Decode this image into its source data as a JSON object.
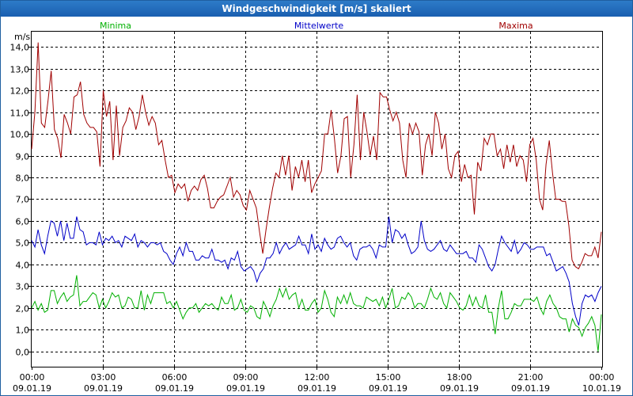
{
  "chart_data": {
    "type": "line",
    "title": "Windgeschwindigkeit [m/s] skaliert",
    "ylabel": "m/s",
    "xlabel": "",
    "ylim": [
      -0.7,
      14.7
    ],
    "yticks": [
      0,
      1,
      2,
      3,
      4,
      5,
      6,
      7,
      8,
      9,
      10,
      11,
      12,
      13,
      14
    ],
    "ytick_labels": [
      "0,0",
      "1,0",
      "2,0",
      "3,0",
      "4,0",
      "5,0",
      "6,0",
      "7,0",
      "8,0",
      "9,0",
      "10,0",
      "11,0",
      "12,0",
      "13,0",
      "14,0"
    ],
    "xlim": [
      0,
      24
    ],
    "xticks": [
      0,
      3,
      6,
      9,
      12,
      15,
      18,
      21,
      24
    ],
    "xtick_time": [
      "00:00",
      "03:00",
      "06:00",
      "09:00",
      "12:00",
      "15:00",
      "18:00",
      "21:00",
      "00:00"
    ],
    "xtick_date": [
      "09.01.19",
      "09.01.19",
      "09.01.19",
      "09.01.19",
      "09.01.19",
      "09.01.19",
      "09.01.19",
      "09.01.19",
      "10.01.19"
    ],
    "grid": true,
    "series": [
      {
        "name": "Minima",
        "color": "#00b000",
        "values": [
          2.0,
          2.3,
          1.9,
          2.2,
          1.8,
          1.9,
          2.8,
          2.8,
          2.2,
          2.5,
          2.7,
          2.3,
          2.5,
          2.6,
          3.5,
          2.1,
          2.3,
          2.3,
          2.5,
          2.7,
          2.6,
          2.0,
          2.4,
          2.0,
          2.3,
          2.7,
          2.5,
          2.6,
          2.0,
          2.1,
          2.5,
          2.4,
          2.0,
          2.0,
          2.8,
          1.9,
          2.6,
          2.2,
          2.7,
          2.7,
          2.7,
          2.7,
          2.2,
          2.3,
          2.0,
          2.3,
          1.9,
          1.5,
          1.8,
          2.0,
          2.0,
          2.2,
          1.8,
          2.0,
          2.2,
          2.1,
          2.2,
          2.0,
          1.9,
          2.5,
          2.2,
          2.2,
          2.6,
          1.9,
          2.0,
          2.4,
          1.9,
          1.8,
          2.1,
          2.0,
          1.6,
          1.5,
          2.3,
          2.0,
          1.6,
          2.1,
          2.4,
          2.9,
          2.5,
          2.9,
          2.4,
          2.6,
          2.7,
          2.0,
          2.4,
          1.9,
          1.9,
          2.2,
          2.4,
          1.8,
          2.0,
          2.8,
          2.4,
          1.8,
          1.6,
          2.5,
          2.2,
          2.6,
          2.2,
          2.7,
          2.2,
          2.1,
          2.1,
          2.0,
          2.5,
          2.4,
          2.3,
          2.4,
          2.1,
          2.5,
          2.0,
          2.4,
          2.9,
          2.0,
          2.1,
          2.5,
          2.4,
          2.7,
          2.5,
          2.0,
          2.2,
          2.2,
          2.0,
          2.4,
          2.9,
          2.5,
          2.4,
          2.7,
          2.2,
          2.0,
          2.7,
          2.5,
          2.3,
          2.0,
          1.9,
          2.1,
          2.6,
          2.1,
          2.5,
          2.1,
          2.0,
          2.6,
          1.8,
          1.8,
          0.8,
          2.0,
          2.8,
          1.5,
          1.5,
          1.8,
          2.2,
          2.1,
          2.1,
          2.4,
          2.4,
          2.4,
          2.3,
          2.5,
          2.0,
          1.7,
          2.3,
          2.6,
          2.2,
          2.0,
          1.6,
          1.5,
          1.5,
          0.9,
          1.5,
          1.2,
          1.1,
          0.7,
          1.1,
          1.3,
          1.6,
          1.2,
          0.0,
          1.7
        ]
      },
      {
        "name": "Mittelwerte",
        "color": "#0000c8",
        "values": [
          5.1,
          4.8,
          5.6,
          4.9,
          4.5,
          5.3,
          6.0,
          5.9,
          5.3,
          6.0,
          5.1,
          5.9,
          5.2,
          5.2,
          6.2,
          5.6,
          5.5,
          4.9,
          5.0,
          5.0,
          4.9,
          5.5,
          4.9,
          5.2,
          5.1,
          5.3,
          5.0,
          5.1,
          4.8,
          5.3,
          5.2,
          5.1,
          5.4,
          4.8,
          5.1,
          5.0,
          4.8,
          5.0,
          5.0,
          4.9,
          5.0,
          4.6,
          4.5,
          4.2,
          4.0,
          4.5,
          4.8,
          4.4,
          5.0,
          4.6,
          4.6,
          4.2,
          4.2,
          4.4,
          4.3,
          4.3,
          4.7,
          4.2,
          4.2,
          4.1,
          4.2,
          3.8,
          4.3,
          4.2,
          4.6,
          3.9,
          3.7,
          3.8,
          3.9,
          3.7,
          3.2,
          3.6,
          3.8,
          4.3,
          4.3,
          4.5,
          5.0,
          4.5,
          4.8,
          5.0,
          4.7,
          4.8,
          4.9,
          5.3,
          4.9,
          4.9,
          4.5,
          5.4,
          4.7,
          4.9,
          4.6,
          5.2,
          4.9,
          4.7,
          4.8,
          5.2,
          5.3,
          5.0,
          4.8,
          5.0,
          4.4,
          4.2,
          4.7,
          4.8,
          4.8,
          4.9,
          4.7,
          4.3,
          4.9,
          4.8,
          4.8,
          6.2,
          5.0,
          5.6,
          5.5,
          5.2,
          5.4,
          4.9,
          4.5,
          4.6,
          4.8,
          6.0,
          5.1,
          4.7,
          4.6,
          4.7,
          4.9,
          5.1,
          4.7,
          4.6,
          4.9,
          4.7,
          4.5,
          4.5,
          4.5,
          4.6,
          4.3,
          4.3,
          4.1,
          4.9,
          4.7,
          4.3,
          3.9,
          3.7,
          4.0,
          4.7,
          5.3,
          5.0,
          4.8,
          4.6,
          5.1,
          4.5,
          4.7,
          5.0,
          4.9,
          4.7,
          4.7,
          4.8,
          4.8,
          4.8,
          4.4,
          4.5,
          4.1,
          3.7,
          3.8,
          3.9,
          3.6,
          3.2,
          2.2,
          1.6,
          1.2,
          2.2,
          2.6,
          2.5,
          2.6,
          2.3,
          2.7,
          3.0
        ]
      },
      {
        "name": "Maxima",
        "color": "#a00000",
        "values": [
          9.3,
          11.0,
          14.2,
          10.5,
          10.3,
          11.5,
          12.9,
          10.2,
          9.8,
          8.9,
          10.9,
          10.5,
          10.0,
          11.7,
          11.8,
          12.4,
          10.9,
          10.5,
          10.3,
          10.3,
          10.1,
          8.5,
          12.0,
          10.8,
          11.5,
          8.8,
          11.3,
          9.0,
          10.3,
          10.6,
          11.2,
          11.0,
          10.2,
          10.8,
          11.8,
          11.0,
          10.4,
          10.8,
          10.5,
          9.5,
          9.7,
          8.8,
          8.0,
          8.1,
          7.3,
          7.7,
          7.5,
          7.7,
          6.9,
          7.4,
          7.6,
          7.4,
          7.9,
          8.1,
          7.5,
          6.6,
          6.6,
          6.9,
          7.1,
          7.2,
          7.6,
          8.0,
          7.1,
          7.4,
          7.2,
          6.7,
          6.5,
          7.4,
          7.0,
          6.6,
          5.5,
          4.5,
          5.6,
          6.6,
          7.5,
          8.2,
          8.0,
          9.0,
          8.1,
          9.0,
          7.4,
          8.5,
          8.0,
          8.8,
          7.8,
          8.8,
          7.3,
          7.7,
          8.0,
          8.3,
          10.0,
          10.0,
          11.1,
          9.8,
          8.2,
          9.0,
          10.7,
          10.8,
          8.0,
          9.5,
          11.8,
          8.8,
          11.0,
          10.1,
          9.0,
          9.9,
          8.8,
          11.9,
          11.7,
          11.7,
          11.1,
          10.6,
          11.0,
          10.5,
          8.8,
          8.0,
          10.5,
          10.0,
          10.5,
          10.1,
          8.1,
          9.5,
          10.0,
          9.0,
          11.0,
          10.5,
          9.3,
          10.0,
          8.4,
          8.0,
          9.0,
          9.2,
          7.8,
          8.6,
          8.0,
          8.1,
          6.3,
          8.7,
          8.3,
          9.8,
          9.5,
          10.0,
          10.0,
          9.0,
          9.3,
          8.4,
          9.5,
          8.7,
          9.5,
          8.5,
          9.0,
          8.8,
          7.8,
          9.5,
          9.8,
          8.8,
          7.0,
          6.5,
          8.6,
          9.7,
          8.2,
          7.0,
          7.0,
          6.9,
          6.9,
          5.8,
          4.2,
          3.9,
          3.8,
          4.1,
          4.5,
          4.4,
          4.4,
          4.8,
          4.3,
          5.5
        ]
      }
    ]
  }
}
